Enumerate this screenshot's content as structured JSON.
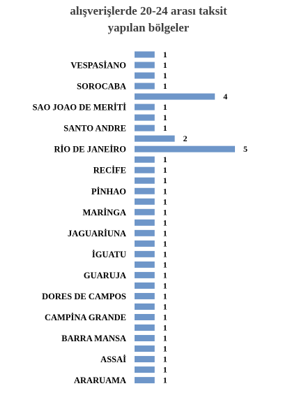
{
  "chart_data": {
    "type": "bar",
    "orientation": "horizontal",
    "title_lines": [
      "alışverişlerde 20-24 arası taksit",
      "yapılan bölgeler"
    ],
    "bar_color": "#6e96c9",
    "grid": false,
    "legend": "none",
    "xlim": [
      0,
      5
    ],
    "categories": [
      "",
      "VESPASİANO",
      "",
      "SOROCABA",
      "",
      "SAO JOAO DE MERİTİ",
      "",
      "SANTO ANDRE",
      "",
      "RİO DE JANEİRO",
      "",
      "RECİFE",
      "",
      "PİNHAO",
      "",
      "MARİNGA",
      "",
      "JAGUARİUNA",
      "",
      "İGUATU",
      "",
      "GUARUJA",
      "",
      "DORES DE CAMPOS",
      "",
      "CAMPİNA GRANDE",
      "",
      "BARRA MANSA",
      "",
      "ASSAİ",
      "",
      "ARARUAMA"
    ],
    "values": [
      1,
      1,
      1,
      1,
      4,
      1,
      1,
      1,
      2,
      5,
      1,
      1,
      1,
      1,
      1,
      1,
      1,
      1,
      1,
      1,
      1,
      1,
      1,
      1,
      1,
      1,
      1,
      1,
      1,
      1,
      1,
      1
    ],
    "value_labels": [
      "1",
      "1",
      "1",
      "1",
      "4",
      "1",
      "1",
      "1",
      "2",
      "5",
      "1",
      "1",
      "1",
      "1",
      "1",
      "1",
      "1",
      "1",
      "1",
      "1",
      "1",
      "1",
      "1",
      "1",
      "1",
      "1",
      "1",
      "1",
      "1",
      "1",
      "1",
      "1"
    ]
  }
}
